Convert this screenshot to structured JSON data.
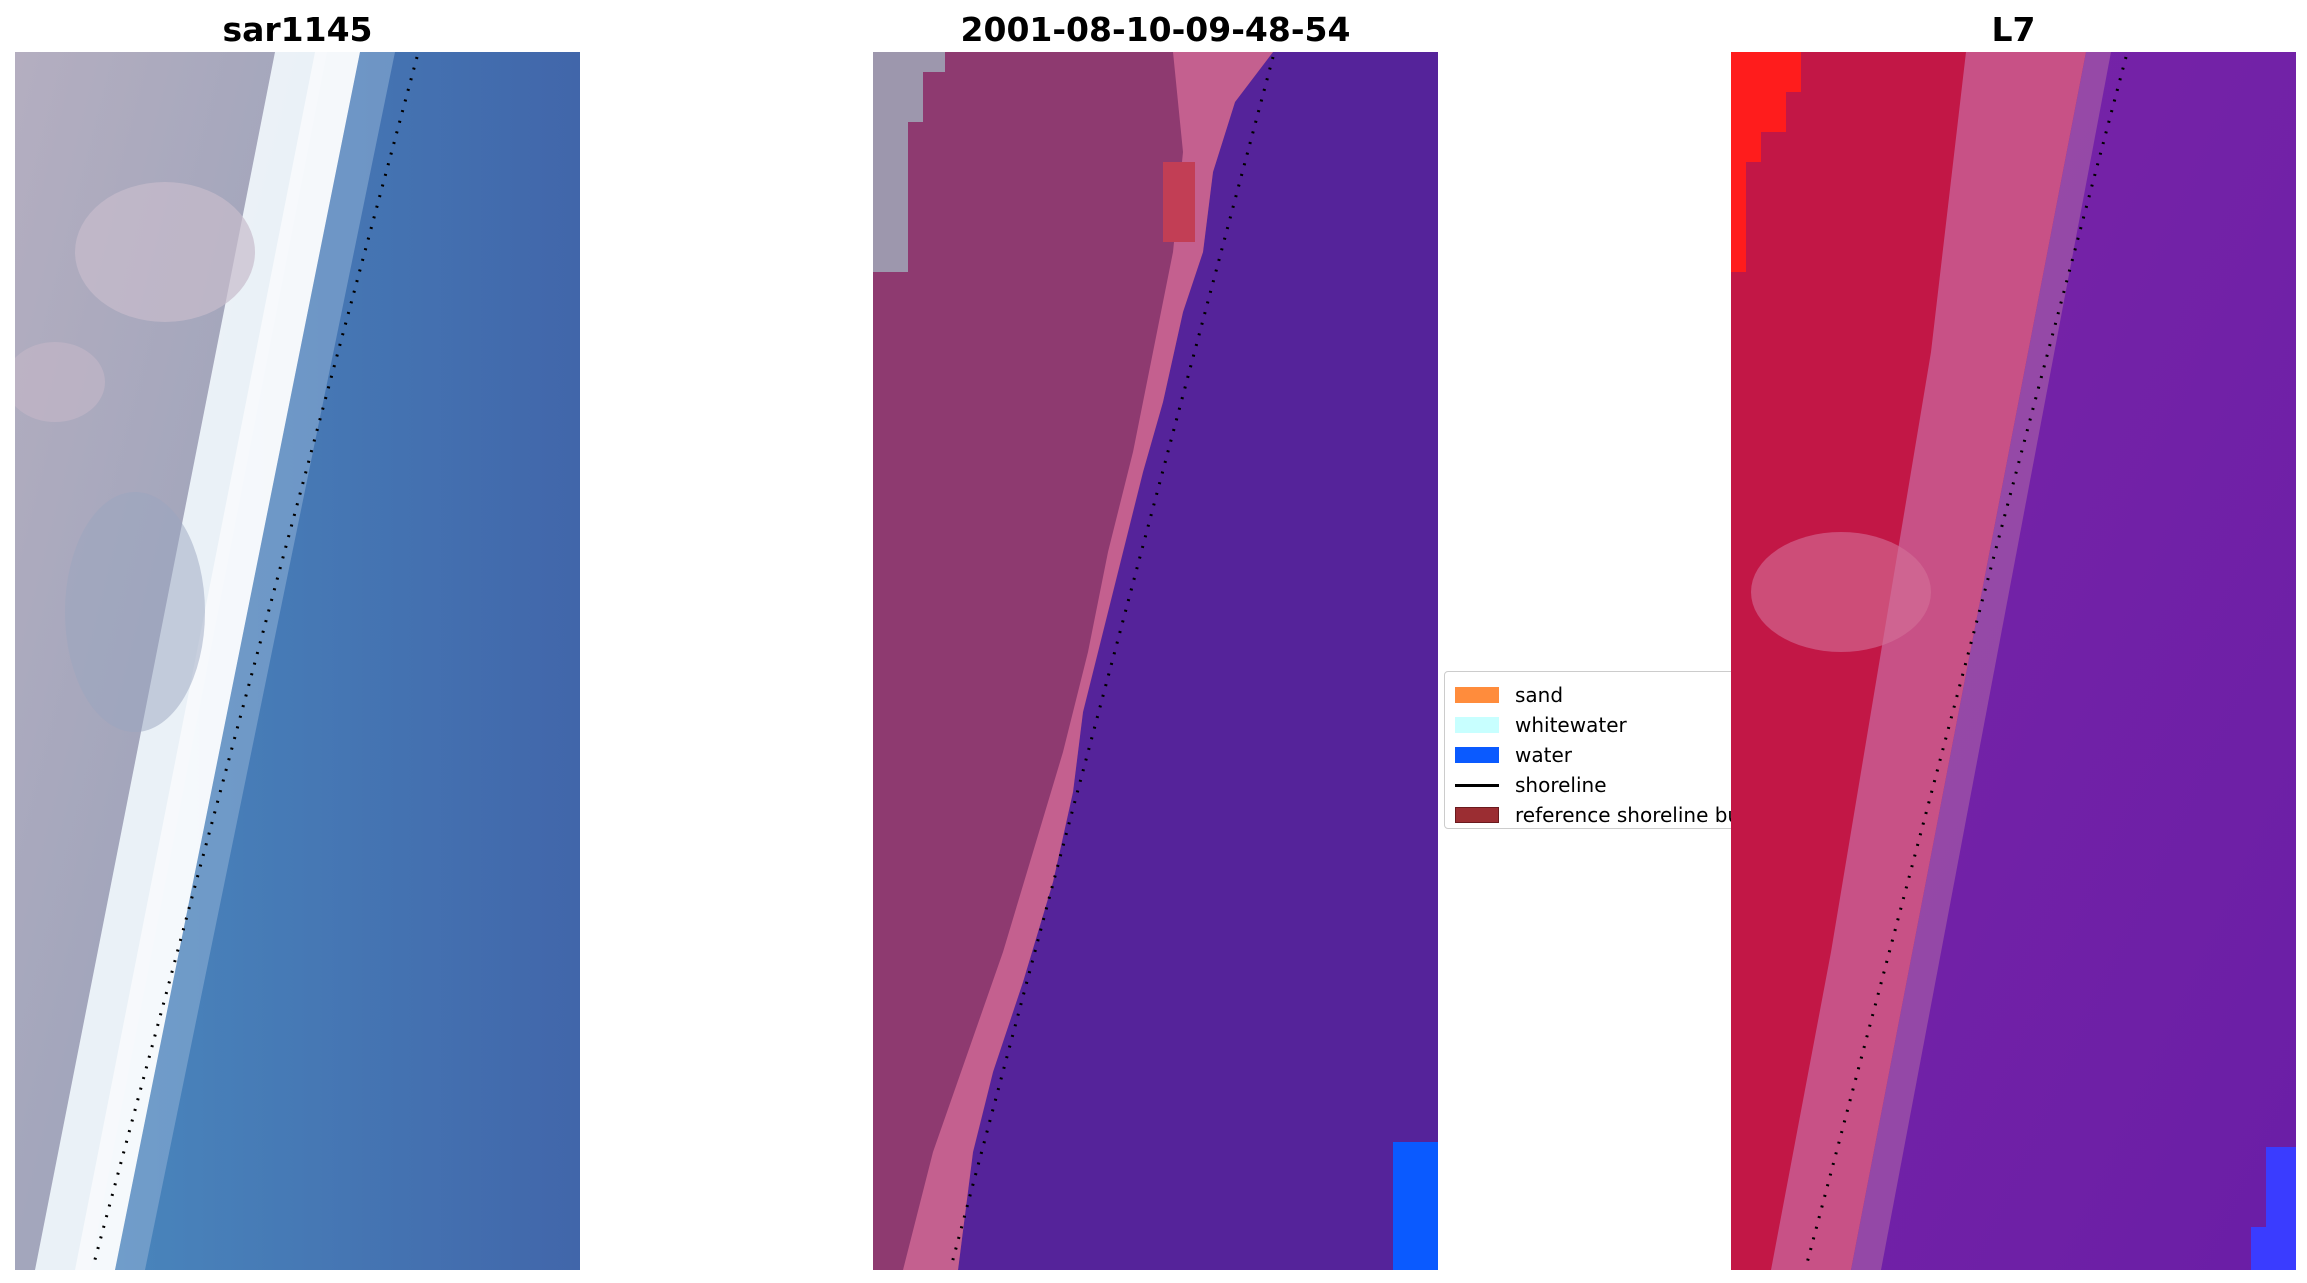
{
  "panels": [
    {
      "title": "sar1145",
      "image": "rgb-satellite-view"
    },
    {
      "title": "2001-08-10-09-48-54",
      "image": "classified-overlay-view"
    },
    {
      "title": "L7",
      "image": "false-color-index-view"
    }
  ],
  "legend": {
    "items": [
      {
        "label": "sand",
        "kind": "patch",
        "color": "#ff8c3c"
      },
      {
        "label": "whitewater",
        "kind": "patch",
        "color": "#c8ffff"
      },
      {
        "label": "water",
        "kind": "patch",
        "color": "#0a5aff"
      },
      {
        "label": "shoreline",
        "kind": "line",
        "color": "#000000"
      },
      {
        "label": "reference shoreline buffer",
        "kind": "patch",
        "color": "#9b2d32"
      }
    ]
  },
  "colors": {
    "land_rgb": "#a7a6bb",
    "beach_rgb": "#f2f7fb",
    "sea_rgb": "#4a7fb5",
    "land_class": "#8e3a70",
    "beach_class": "#c4608f",
    "sea_class": "#55239a",
    "water_class": "#0a5aff",
    "land_index": "#c8163f",
    "beach_index": "#c9588d",
    "sea_index": "#6c1fa6"
  }
}
